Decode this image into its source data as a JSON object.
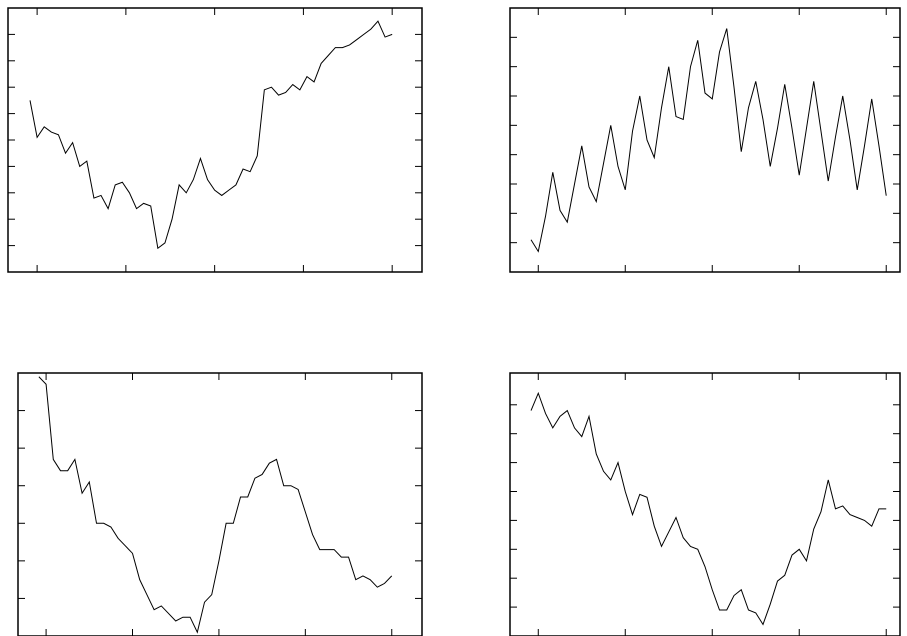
{
  "chart_data": [
    {
      "type": "line",
      "color": "#000000",
      "x": [
        -1,
        0,
        1,
        2,
        3,
        4,
        5,
        6,
        7,
        8,
        9,
        10,
        11,
        12,
        13,
        14,
        15,
        16,
        17,
        18,
        19,
        20,
        21,
        22,
        23,
        24,
        25,
        26,
        27,
        28,
        29,
        30,
        31,
        32,
        33,
        34,
        35,
        36,
        37,
        38,
        39,
        40,
        41,
        42,
        43,
        44,
        45,
        46,
        47,
        48,
        49,
        50
      ],
      "values": [
        6.5,
        5.1,
        5.5,
        5.3,
        5.2,
        4.5,
        4.9,
        4.0,
        4.2,
        2.8,
        2.9,
        2.4,
        3.3,
        3.4,
        3.0,
        2.4,
        2.6,
        2.5,
        0.9,
        1.1,
        2.0,
        3.3,
        3.0,
        3.5,
        4.3,
        3.5,
        3.1,
        2.9,
        3.1,
        3.3,
        3.9,
        3.8,
        4.4,
        6.9,
        7.0,
        6.7,
        6.8,
        7.1,
        6.9,
        7.4,
        7.2,
        7.9,
        8.2,
        8.5,
        8.5,
        8.6,
        8.8,
        9.0,
        9.2,
        9.5,
        8.9,
        9.0
      ],
      "xlim": [
        -4.1,
        54.2
      ],
      "xticks": [
        0,
        12.5,
        25,
        37.5,
        50
      ],
      "ylim": [
        0,
        10
      ],
      "yticks": [
        1,
        2,
        3,
        4,
        5,
        6,
        7,
        8,
        9
      ]
    },
    {
      "type": "line",
      "color": "#000000",
      "x": [
        -1,
        0,
        1,
        2,
        3,
        4,
        5,
        6,
        7,
        8,
        9,
        10,
        11,
        12,
        13,
        14,
        15,
        16,
        17,
        18,
        19,
        20,
        21,
        22,
        23,
        24,
        25,
        26,
        27,
        28,
        29,
        30,
        31,
        32,
        33,
        34,
        35,
        36,
        37,
        38,
        39,
        40,
        41,
        42,
        43,
        44,
        45,
        46,
        47,
        48
      ],
      "values": [
        1.1,
        0.7,
        1.9,
        3.4,
        2.1,
        1.7,
        3.0,
        4.3,
        2.9,
        2.4,
        3.7,
        5.0,
        3.6,
        2.8,
        4.8,
        6.0,
        4.5,
        3.9,
        5.6,
        7.0,
        5.3,
        5.2,
        7.0,
        7.9,
        6.1,
        5.9,
        7.5,
        8.3,
        6.3,
        4.1,
        5.6,
        6.5,
        5.2,
        3.6,
        4.9,
        6.4,
        4.9,
        3.3,
        4.9,
        6.5,
        4.8,
        3.1,
        4.6,
        6.0,
        4.5,
        2.8,
        4.3,
        5.9,
        4.3,
        2.6
      ],
      "xlim": [
        -3.9,
        49.9
      ],
      "xticks": [
        0,
        12,
        24,
        36,
        48
      ],
      "ylim": [
        0,
        9
      ],
      "yticks": [
        1,
        2,
        3,
        4,
        5,
        6,
        7,
        8
      ]
    },
    {
      "type": "line",
      "color": "#000000",
      "x": [
        -1,
        0,
        1,
        2,
        3,
        4,
        5,
        6,
        7,
        8,
        9,
        10,
        11,
        12,
        13,
        14,
        15,
        16,
        17,
        18,
        19,
        20,
        21,
        22,
        23,
        24,
        25,
        26,
        27,
        28,
        29,
        30,
        31,
        32,
        33,
        34,
        35,
        36,
        37,
        38,
        39,
        40,
        41,
        42,
        43,
        44,
        45,
        46,
        47,
        48
      ],
      "values": [
        6.9,
        6.7,
        4.7,
        4.4,
        4.4,
        4.7,
        3.8,
        4.1,
        3.0,
        3.0,
        2.9,
        2.6,
        2.4,
        2.2,
        1.5,
        1.1,
        0.7,
        0.8,
        0.6,
        0.4,
        0.5,
        0.5,
        0.1,
        0.9,
        1.1,
        2.0,
        3.0,
        3.0,
        3.7,
        3.7,
        4.2,
        4.3,
        4.6,
        4.7,
        4.0,
        4.0,
        3.9,
        3.3,
        2.7,
        2.3,
        2.3,
        2.3,
        2.1,
        2.1,
        1.5,
        1.6,
        1.5,
        1.3,
        1.4,
        1.6
      ],
      "xlim": [
        -3.9,
        52.2
      ],
      "xticks": [
        0,
        12,
        24,
        36,
        48
      ],
      "ylim": [
        0,
        7
      ],
      "yticks": [
        1,
        2,
        3,
        4,
        5,
        6
      ]
    },
    {
      "type": "line",
      "color": "#000000",
      "x": [
        -1,
        0,
        1,
        2,
        3,
        4,
        5,
        6,
        7,
        8,
        9,
        10,
        11,
        12,
        13,
        14,
        15,
        16,
        17,
        18,
        19,
        20,
        21,
        22,
        23,
        24,
        25,
        26,
        27,
        28,
        29,
        30,
        31,
        32,
        33,
        34,
        35,
        36,
        37,
        38,
        39,
        40,
        41,
        42,
        43,
        44,
        45,
        46,
        47,
        48
      ],
      "values": [
        7.8,
        8.4,
        7.7,
        7.2,
        7.6,
        7.8,
        7.2,
        6.9,
        7.6,
        6.3,
        5.7,
        5.4,
        6.0,
        5.0,
        4.2,
        4.9,
        4.8,
        3.8,
        3.1,
        3.6,
        4.1,
        3.4,
        3.1,
        3.0,
        2.4,
        1.6,
        0.9,
        0.9,
        1.4,
        1.6,
        0.9,
        0.8,
        0.4,
        1.1,
        1.9,
        2.1,
        2.8,
        3.0,
        2.6,
        3.7,
        4.3,
        5.4,
        4.4,
        4.5,
        4.2,
        4.1,
        4.0,
        3.8,
        4.4,
        4.4
      ],
      "xlim": [
        -3.9,
        49.9
      ],
      "xticks": [
        0,
        12,
        24,
        36,
        48
      ],
      "ylim": [
        0,
        9.1
      ],
      "yticks": [
        1,
        2,
        3,
        4,
        5,
        6,
        7,
        8
      ]
    }
  ]
}
